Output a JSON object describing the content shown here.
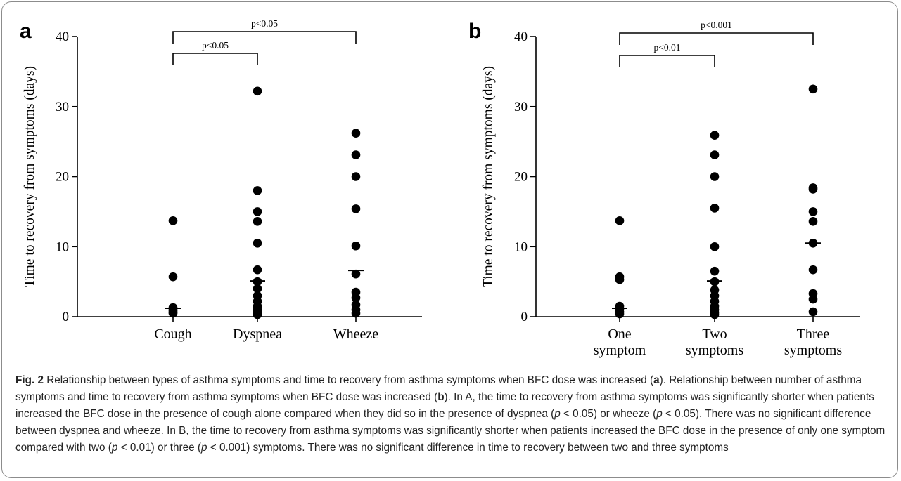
{
  "chart_data": [
    {
      "type": "scatter",
      "panel": "a",
      "ylabel": "Time to recovery from symptoms (days)",
      "ylim": [
        0,
        40
      ],
      "yticks": [
        0,
        10,
        20,
        30,
        40
      ],
      "categories": [
        "Cough",
        "Dyspnea",
        "Wheeze"
      ],
      "points": [
        [
          0.5,
          0.6,
          0.8,
          1.0,
          1.3,
          5.7,
          13.7
        ],
        [
          0.3,
          0.6,
          1.0,
          1.5,
          2.2,
          3.0,
          4.0,
          5.0,
          6.7,
          10.5,
          13.6,
          15.0,
          18.0,
          32.2
        ],
        [
          0.5,
          1.0,
          1.7,
          2.7,
          3.5,
          6.1,
          10.1,
          15.4,
          20.0,
          23.1,
          26.2
        ]
      ],
      "medians": [
        1.2,
        5.1,
        6.6
      ],
      "comparisons": [
        {
          "from": 0,
          "to": 1,
          "label": "p<0.05"
        },
        {
          "from": 0,
          "to": 2,
          "label": "p<0.05"
        }
      ]
    },
    {
      "type": "scatter",
      "panel": "b",
      "ylabel": "Time to recovery from symptoms (days)",
      "ylim": [
        0,
        40
      ],
      "yticks": [
        0,
        10,
        20,
        30,
        40
      ],
      "categories": [
        [
          "One",
          "symptom"
        ],
        [
          "Two",
          "symptoms"
        ],
        [
          "Three",
          "symptoms"
        ]
      ],
      "points": [
        [
          0.4,
          0.7,
          1.1,
          1.5,
          5.3,
          5.7,
          13.7
        ],
        [
          0.3,
          0.6,
          1.0,
          1.5,
          2.2,
          3.0,
          3.8,
          5.0,
          6.5,
          10.0,
          15.5,
          20.0,
          23.1,
          25.9
        ],
        [
          0.7,
          2.5,
          3.3,
          6.7,
          10.5,
          13.6,
          15.0,
          18.2,
          18.4,
          32.5
        ]
      ],
      "medians": [
        1.2,
        5.1,
        10.5
      ],
      "comparisons": [
        {
          "from": 0,
          "to": 1,
          "label": "p<0.01"
        },
        {
          "from": 0,
          "to": 2,
          "label": "p<0.001"
        }
      ]
    }
  ],
  "caption": {
    "fig_label": "Fig. 2",
    "part1": " Relationship between types of asthma symptoms and time to recovery from asthma symptoms when BFC dose was increased (",
    "panel_a": "a",
    "part2": "). Relationship between number of asthma symptoms and time to recovery from asthma symptoms when BFC dose was increased (",
    "panel_b": "b",
    "part3": "). In A, the time to recovery from asthma symptoms was significantly shorter when patients increased the BFC dose in the presence of cough alone compared when they did so in the presence of dyspnea (",
    "p1": "p",
    "part4": " < 0.05) or wheeze (",
    "p2": "p",
    "part5": " < 0.05). There was no significant difference between dyspnea and wheeze. In B, the time to recovery from asthma symptoms was significantly shorter when patients increased the BFC dose in the presence of only one symptom compared with two (",
    "p3": "p",
    "part6": " < 0.01) or three (",
    "p4": "p",
    "part7": " < 0.001) symptoms. There was no significant difference in time to recovery between two and three symptoms"
  },
  "style": {
    "marker_color": "#000000",
    "text_color": "#222222",
    "border_color": "#8c8c8c"
  }
}
